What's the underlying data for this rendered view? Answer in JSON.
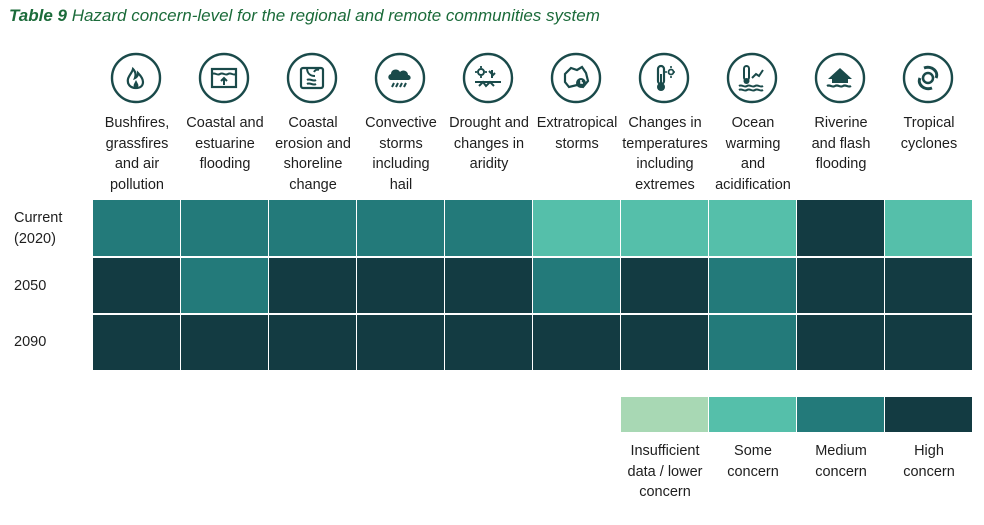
{
  "title": {
    "number": "Table 9",
    "text": "Hazard concern-level for the regional and remote communities system"
  },
  "colors": {
    "insufficient": "#a8d8b4",
    "some": "#55bfaa",
    "medium": "#237a7a",
    "high": "#133b42",
    "icon_stroke": "#1a4a4a"
  },
  "hazards": [
    {
      "icon": "fire-icon",
      "label_lines": [
        "Bushfires,",
        "grassfires",
        "and air",
        "pollution"
      ]
    },
    {
      "icon": "coastal-flood-icon",
      "label_lines": [
        "Coastal and",
        "estuarine",
        "flooding"
      ]
    },
    {
      "icon": "coastal-erosion-icon",
      "label_lines": [
        "Coastal",
        "erosion and",
        "shoreline",
        "change"
      ]
    },
    {
      "icon": "storm-cloud-icon",
      "label_lines": [
        "Convective",
        "storms",
        "including",
        "hail"
      ]
    },
    {
      "icon": "drought-icon",
      "label_lines": [
        "Drought and",
        "changes in",
        "aridity"
      ]
    },
    {
      "icon": "australia-clock-icon",
      "label_lines": [
        "Extratropical",
        "storms"
      ]
    },
    {
      "icon": "thermometer-icon",
      "label_lines": [
        "Changes in",
        "temperatures",
        "including",
        "extremes"
      ]
    },
    {
      "icon": "ocean-warming-icon",
      "label_lines": [
        "Ocean",
        "warming",
        "and",
        "acidification"
      ]
    },
    {
      "icon": "house-flood-icon",
      "label_lines": [
        "Riverine",
        "and flash",
        "flooding"
      ]
    },
    {
      "icon": "cyclone-icon",
      "label_lines": [
        "Tropical",
        "cyclones"
      ]
    }
  ],
  "rows": [
    {
      "label_lines": [
        "Current",
        "(2020)"
      ],
      "levels": [
        "medium",
        "medium",
        "medium",
        "medium",
        "medium",
        "some",
        "some",
        "some",
        "high",
        "some"
      ]
    },
    {
      "label_lines": [
        "2050"
      ],
      "levels": [
        "high",
        "medium",
        "high",
        "high",
        "high",
        "medium",
        "high",
        "medium",
        "high",
        "high"
      ]
    },
    {
      "label_lines": [
        "2090"
      ],
      "levels": [
        "high",
        "high",
        "high",
        "high",
        "high",
        "high",
        "high",
        "medium",
        "high",
        "high"
      ]
    }
  ],
  "legend": [
    {
      "level": "insufficient",
      "label_lines": [
        "Insufficient",
        "data / lower",
        "concern"
      ]
    },
    {
      "level": "some",
      "label_lines": [
        "Some",
        "concern"
      ]
    },
    {
      "level": "medium",
      "label_lines": [
        "Medium",
        "concern"
      ]
    },
    {
      "level": "high",
      "label_lines": [
        "High",
        "concern"
      ]
    }
  ]
}
